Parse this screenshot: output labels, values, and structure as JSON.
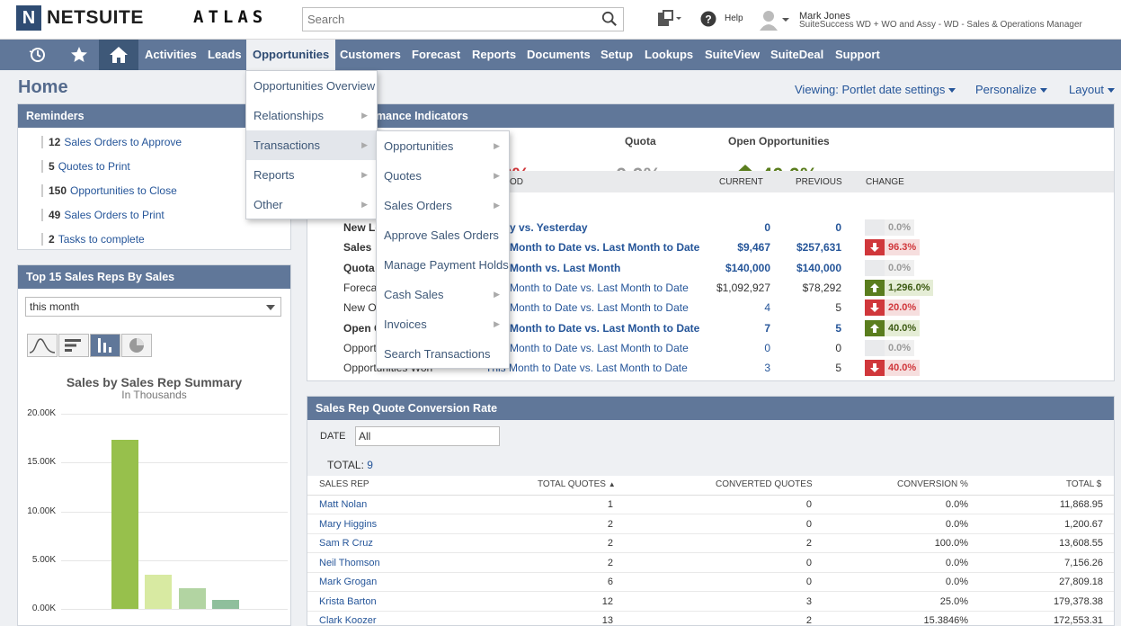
{
  "brand": {
    "logo_letter": "N",
    "name": "NETSUITE",
    "product": "ATLAS"
  },
  "search": {
    "placeholder": "Search"
  },
  "header": {
    "help": "Help",
    "user_name": "Mark Jones",
    "user_role": "SuiteSuccess WD + WO and Assy - WD - Sales & Operations Manager"
  },
  "nav": {
    "items": [
      "Activities",
      "Leads",
      "Opportunities",
      "Customers",
      "Forecast",
      "Reports",
      "Documents",
      "Setup",
      "Lookups",
      "SuiteView",
      "SuiteDeal",
      "Support"
    ],
    "active": "Opportunities"
  },
  "page": {
    "title": "Home",
    "viewing": "Viewing: Portlet date settings",
    "personalize": "Personalize",
    "layout": "Layout"
  },
  "reminders": {
    "title": "Reminders",
    "items": [
      {
        "count": "12",
        "label": "Sales Orders to Approve"
      },
      {
        "count": "5",
        "label": "Quotes to Print"
      },
      {
        "count": "150",
        "label": "Opportunities to Close"
      },
      {
        "count": "49",
        "label": "Sales Orders to Print"
      },
      {
        "count": "2",
        "label": "Tasks to complete"
      }
    ]
  },
  "top_reps": {
    "title": "Top 15 Sales Reps By Sales",
    "period": "this month",
    "chart_tabs": [
      "line-chart-icon",
      "bar-horizontal-icon",
      "bar-vertical-icon",
      "pie-chart-icon"
    ]
  },
  "chart_data": {
    "type": "bar",
    "title": "Sales by Sales Rep Summary",
    "subtitle": "In Thousands",
    "ylim": [
      0,
      20000
    ],
    "yticks": [
      "0.00K",
      "5.00K",
      "10.00K",
      "15.00K",
      "20.00K"
    ],
    "values": [
      17300,
      3500,
      2100,
      950
    ],
    "colors": [
      "#97c04c",
      "#d8eaa2",
      "#b2d4a2",
      "#8fbf9c"
    ]
  },
  "kpi": {
    "title": "Key Performance Indicators",
    "title_visible": "mance Indicators",
    "summary": [
      {
        "label": "les",
        "value": "6.3%",
        "color": "#d0373b",
        "arrow": "none"
      },
      {
        "label": "Quota",
        "value": "0.0%",
        "color": "#999999",
        "arrow": "none"
      },
      {
        "label": "Open Opportunities",
        "value": "40.0%",
        "color": "#5a7d1e",
        "arrow": "up"
      }
    ],
    "headers": {
      "period": "OD",
      "current": "CURRENT",
      "previous": "PREVIOUS",
      "change": "CHANGE"
    },
    "rows": [
      {
        "indicator": "New Le",
        "period": "y vs. Yesterday",
        "current": "0",
        "previous": "0",
        "change": "0.0%",
        "dir": "none",
        "bold": true
      },
      {
        "indicator": "Sales",
        "period": "Month to Date vs. Last Month to Date",
        "current": "$9,467",
        "previous": "$257,631",
        "change": "96.3%",
        "dir": "down",
        "bold": true
      },
      {
        "indicator": "Quota",
        "period": "Month vs. Last Month",
        "current": "$140,000",
        "previous": "$140,000",
        "change": "0.0%",
        "dir": "none",
        "bold": true
      },
      {
        "indicator": "Foreca",
        "period": "Month to Date vs. Last Month to Date",
        "current": "$1,092,927",
        "previous": "$78,292",
        "change": "1,296.0%",
        "dir": "up",
        "bold": false
      },
      {
        "indicator": "New Op",
        "period": "Month to Date vs. Last Month to Date",
        "current": "4",
        "previous": "5",
        "change": "20.0%",
        "dir": "down",
        "bold": false
      },
      {
        "indicator": "Open C",
        "period": "Month to Date vs. Last Month to Date",
        "current": "7",
        "previous": "5",
        "change": "40.0%",
        "dir": "up",
        "bold": true
      },
      {
        "indicator": "Opporti",
        "period": "Month to Date vs. Last Month to Date",
        "current": "0",
        "previous": "0",
        "change": "0.0%",
        "dir": "none",
        "bold": false
      },
      {
        "indicator": "Opportunities Won",
        "period": "This Month to Date vs. Last Month to Date",
        "current": "3",
        "previous": "5",
        "change": "40.0%",
        "dir": "down",
        "bold": false
      }
    ]
  },
  "sqcr": {
    "title": "Sales Rep Quote Conversion Rate",
    "date_label": "DATE",
    "date_value": "All",
    "total_label": "TOTAL:",
    "total_value": "9",
    "headers": {
      "rep": "SALES REP",
      "quotes": "TOTAL QUOTES",
      "converted": "CONVERTED QUOTES",
      "rate": "CONVERSION %",
      "total": "TOTAL $"
    },
    "rows": [
      {
        "rep": "Matt Nolan",
        "quotes": "1",
        "converted": "0",
        "rate": "0.0%",
        "total": "11,868.95"
      },
      {
        "rep": "Mary Higgins",
        "quotes": "2",
        "converted": "0",
        "rate": "0.0%",
        "total": "1,200.67"
      },
      {
        "rep": "Sam R Cruz",
        "quotes": "2",
        "converted": "2",
        "rate": "100.0%",
        "total": "13,608.55"
      },
      {
        "rep": "Neil Thomson",
        "quotes": "2",
        "converted": "0",
        "rate": "0.0%",
        "total": "7,156.26"
      },
      {
        "rep": "Mark Grogan",
        "quotes": "6",
        "converted": "0",
        "rate": "0.0%",
        "total": "27,809.18"
      },
      {
        "rep": "Krista Barton",
        "quotes": "12",
        "converted": "3",
        "rate": "25.0%",
        "total": "179,378.38"
      },
      {
        "rep": "Clark Koozer",
        "quotes": "13",
        "converted": "2",
        "rate": "15.3846%",
        "total": "172,553.31"
      }
    ]
  },
  "menu_main": {
    "items": [
      {
        "label": "Opportunities Overview",
        "sub": false
      },
      {
        "label": "Relationships",
        "sub": true
      },
      {
        "label": "Transactions",
        "sub": true
      },
      {
        "label": "Reports",
        "sub": true
      },
      {
        "label": "Other",
        "sub": true
      }
    ],
    "selected": "Transactions"
  },
  "menu_sub": {
    "items": [
      {
        "label": "Opportunities",
        "sub": true
      },
      {
        "label": "Quotes",
        "sub": true
      },
      {
        "label": "Sales Orders",
        "sub": true
      },
      {
        "label": "Approve Sales Orders",
        "sub": false
      },
      {
        "label": "Manage Payment Holds",
        "sub": false
      },
      {
        "label": "Cash Sales",
        "sub": true
      },
      {
        "label": "Invoices",
        "sub": true
      },
      {
        "label": "Search Transactions",
        "sub": false
      }
    ]
  },
  "colors": {
    "nav": "#607799",
    "link": "#255599",
    "down": "#d0373b",
    "up": "#5a7d1e"
  }
}
